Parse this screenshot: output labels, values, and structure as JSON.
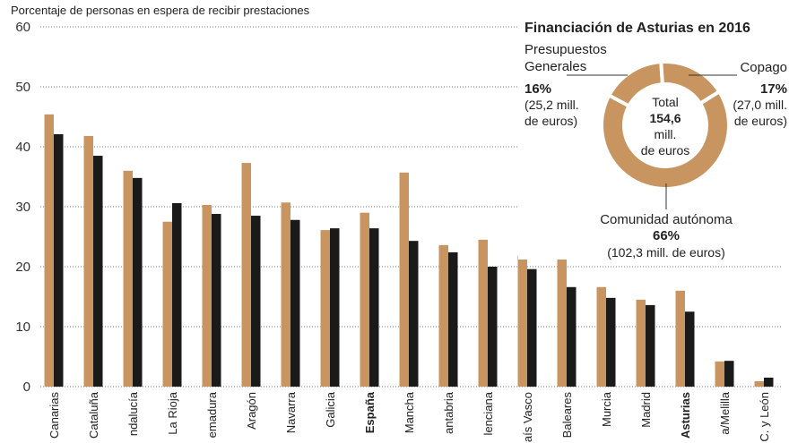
{
  "chart_data": [
    {
      "type": "bar",
      "y_label": "Porcentaje de personas en espera de recibir prestaciones",
      "categories": [
        "Canarias",
        "Cataluña",
        "ndalucía",
        "La Rioja",
        "emadura",
        "Aragón",
        "Navarra",
        "Galicia",
        "España",
        "Mancha",
        "antabria",
        "lenciana",
        "aís Vasco",
        "Baleares",
        "Murcia",
        "Madrid",
        "Asturias",
        "a/Melilla",
        "C. y León"
      ],
      "highlight": [
        8,
        16
      ],
      "series": [
        {
          "color": "#c8945f",
          "values": [
            45.4,
            41.8,
            36,
            27.5,
            30.3,
            37.3,
            30.7,
            26.1,
            29,
            35.7,
            23.6,
            24.5,
            21.9,
            21.5,
            16.6,
            14.5,
            16,
            4.2,
            0.9
          ]
        },
        {
          "color": "#1a1a1a",
          "values": [
            42.1,
            38.5,
            34.8,
            30.6,
            28.8,
            28.5,
            27.8,
            26.4,
            26.4,
            24.3,
            22.4,
            20,
            19.6,
            16.6,
            14.8,
            13.6,
            12.5,
            4.3,
            1.5
          ]
        }
      ],
      "ylim": [
        0,
        60
      ],
      "yticks": [
        0,
        10,
        20,
        30,
        40,
        50,
        60
      ],
      "grid": true
    },
    {
      "type": "donut",
      "title": "Financiación de Asturias en 2016",
      "color": "#c8945f",
      "center_lines": [
        "Total",
        "154,6",
        "mill.",
        "de euros"
      ],
      "slices": [
        {
          "label_lines": [
            "Presupuestos",
            "Generales"
          ],
          "value": 16,
          "value_label": "16%",
          "detail_lines": [
            "(25,2 mill.",
            "de euros)"
          ]
        },
        {
          "label_lines": [
            "Copago"
          ],
          "value": 17,
          "value_label": "17%",
          "detail_lines": [
            "(27,0 mill.",
            "de euros)"
          ]
        },
        {
          "label_lines": [
            "Comunidad autónoma"
          ],
          "value": 66,
          "value_label": "66%",
          "detail_lines": [
            "(102,3 mill. de euros)"
          ]
        }
      ]
    }
  ]
}
